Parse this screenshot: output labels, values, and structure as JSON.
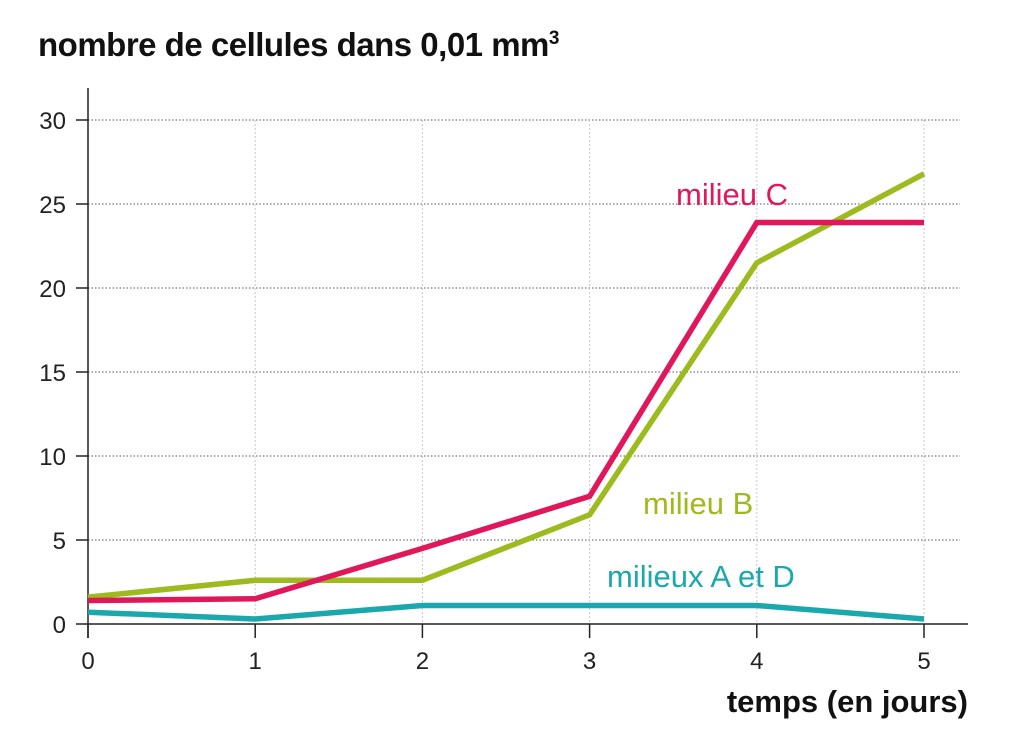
{
  "chart_data": {
    "type": "line",
    "ylabel": "nombre de cellules dans 0,01 mm",
    "ylabel_sup": "3",
    "xlabel": "temps (en jours)",
    "x": [
      0,
      1,
      2,
      3,
      4,
      5
    ],
    "xlim": [
      0,
      5.25
    ],
    "ylim": [
      0,
      31
    ],
    "xticks": [
      "0",
      "1",
      "2",
      "3",
      "4",
      "5"
    ],
    "yticks": [
      "0",
      "5",
      "10",
      "15",
      "20",
      "25",
      "30"
    ],
    "grid": true,
    "series": [
      {
        "name": "milieu C",
        "color": "#e0185a",
        "values": [
          1.4,
          1.5,
          4.5,
          7.6,
          23.9,
          23.9
        ]
      },
      {
        "name": "milieu B",
        "color": "#9dbb1e",
        "values": [
          1.6,
          2.6,
          2.6,
          6.5,
          21.5,
          26.8
        ]
      },
      {
        "name": "milieux A et D",
        "color": "#1aa8ad",
        "values": [
          0.7,
          0.3,
          1.1,
          1.1,
          1.1,
          0.3
        ]
      }
    ]
  }
}
